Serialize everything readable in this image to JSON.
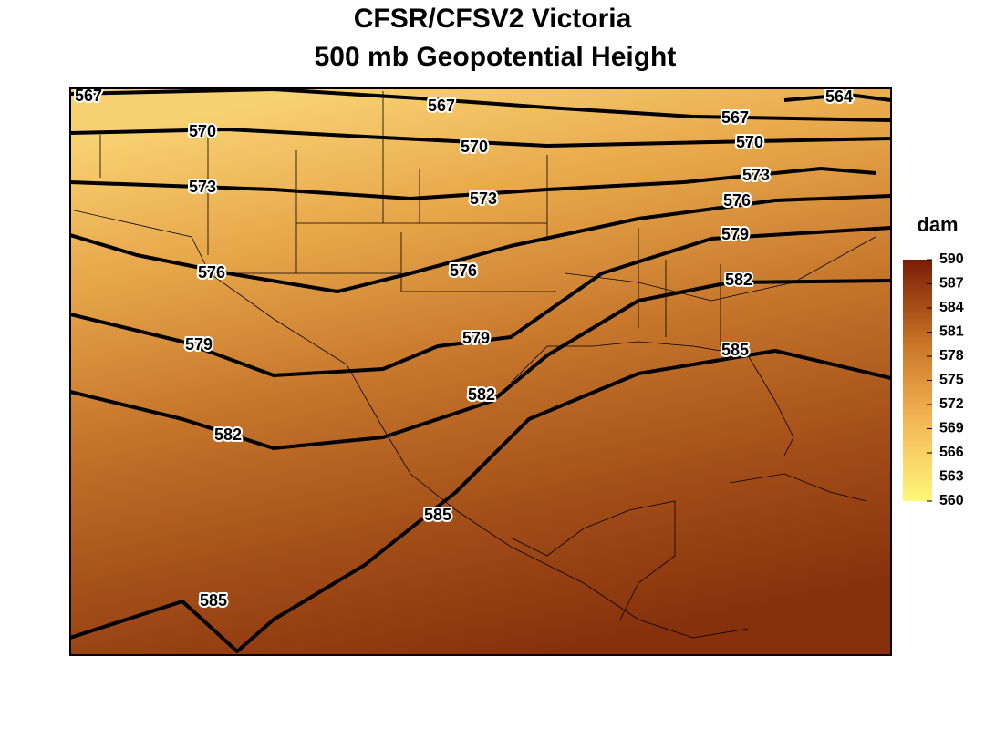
{
  "header": {
    "title": [
      "CFSR/CFSV2 Victoria",
      "500 mb Geopotential Height"
    ]
  },
  "colorbar": {
    "title": "dam",
    "ticks": [
      590,
      587,
      584,
      581,
      578,
      575,
      572,
      569,
      566,
      563,
      560
    ]
  },
  "contour_labels": [
    "567",
    "567",
    "564",
    "567",
    "570",
    "570",
    "570",
    "573",
    "573",
    "573",
    "576",
    "579",
    "576",
    "576",
    "582",
    "579",
    "579",
    "585",
    "582",
    "582",
    "585",
    "585"
  ]
}
